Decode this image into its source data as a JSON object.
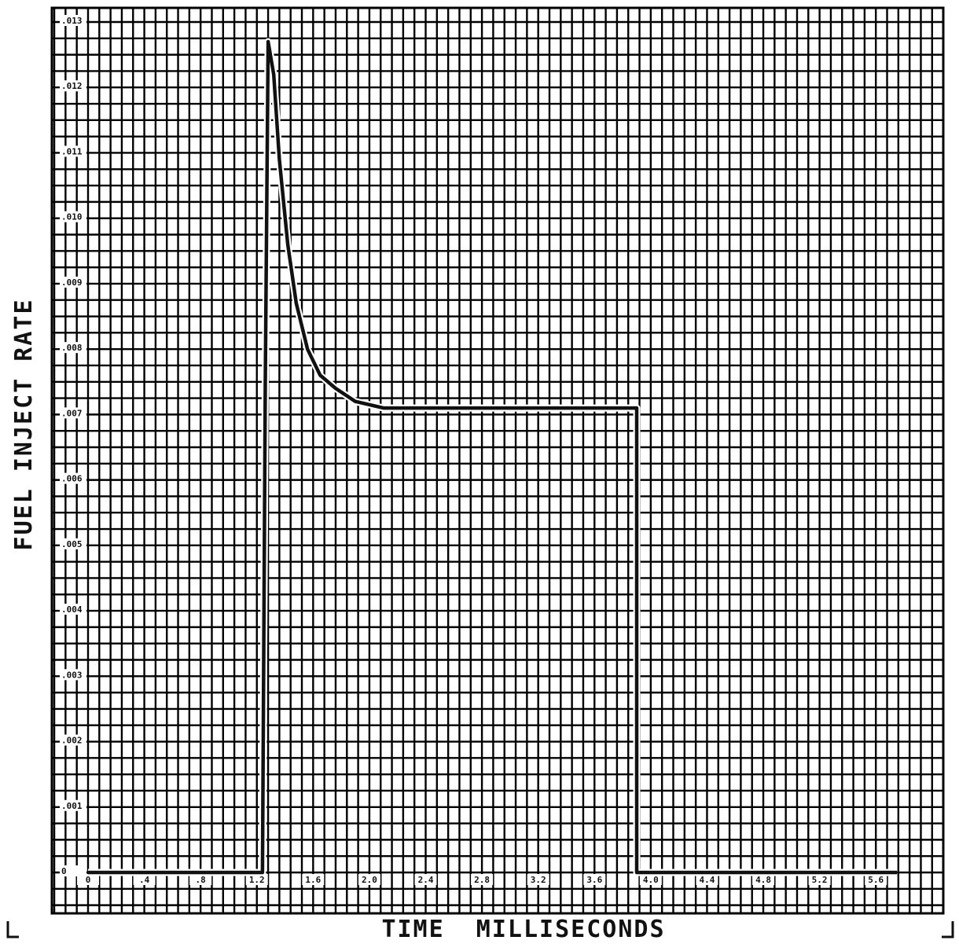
{
  "chart_data": {
    "type": "line",
    "title": "",
    "xlabel": "TIME  MILLISECONDS",
    "ylabel": "FUEL INJECT RATE",
    "xlim": [
      0,
      5.8
    ],
    "ylim": [
      0,
      0.013
    ],
    "grid": true,
    "x_ticks": [
      {
        "value": 0,
        "label": "0"
      },
      {
        "value": 0.4,
        "label": ".4"
      },
      {
        "value": 0.8,
        "label": ".8"
      },
      {
        "value": 1.2,
        "label": "1.2"
      },
      {
        "value": 1.6,
        "label": "1.6"
      },
      {
        "value": 2.0,
        "label": "2.0"
      },
      {
        "value": 2.4,
        "label": "2.4"
      },
      {
        "value": 2.8,
        "label": "2.8"
      },
      {
        "value": 3.2,
        "label": "3.2"
      },
      {
        "value": 3.6,
        "label": "3.6"
      },
      {
        "value": 4.0,
        "label": "4.0"
      },
      {
        "value": 4.4,
        "label": "4.4"
      },
      {
        "value": 4.8,
        "label": "4.8"
      },
      {
        "value": 5.2,
        "label": "5.2"
      },
      {
        "value": 5.6,
        "label": "5.6"
      }
    ],
    "y_ticks": [
      {
        "value": 0,
        "label": "0"
      },
      {
        "value": 0.001,
        "label": ".001"
      },
      {
        "value": 0.002,
        "label": ".002"
      },
      {
        "value": 0.003,
        "label": ".003"
      },
      {
        "value": 0.004,
        "label": ".004"
      },
      {
        "value": 0.005,
        "label": ".005"
      },
      {
        "value": 0.006,
        "label": ".006"
      },
      {
        "value": 0.007,
        "label": ".007"
      },
      {
        "value": 0.008,
        "label": ".008"
      },
      {
        "value": 0.009,
        "label": ".009"
      },
      {
        "value": 0.01,
        "label": ".010"
      },
      {
        "value": 0.011,
        "label": ".011"
      },
      {
        "value": 0.012,
        "label": ".012"
      },
      {
        "value": 0.013,
        "label": ".013"
      }
    ],
    "series": [
      {
        "color": "#111111",
        "x": [
          0,
          1.24,
          1.26,
          1.28,
          1.32,
          1.36,
          1.42,
          1.48,
          1.56,
          1.65,
          1.76,
          1.9,
          2.1,
          2.4,
          2.7,
          3.0,
          3.3,
          3.6,
          3.9,
          3.9,
          4.0,
          4.5,
          5.0,
          5.5,
          5.75
        ],
        "y": [
          0,
          0,
          0.0075,
          0.0127,
          0.0122,
          0.0109,
          0.0096,
          0.0087,
          0.008,
          0.0076,
          0.0074,
          0.0072,
          0.0071,
          0.0071,
          0.0071,
          0.0071,
          0.0071,
          0.0071,
          0.0071,
          0,
          0,
          0,
          0,
          0,
          0
        ]
      }
    ]
  }
}
